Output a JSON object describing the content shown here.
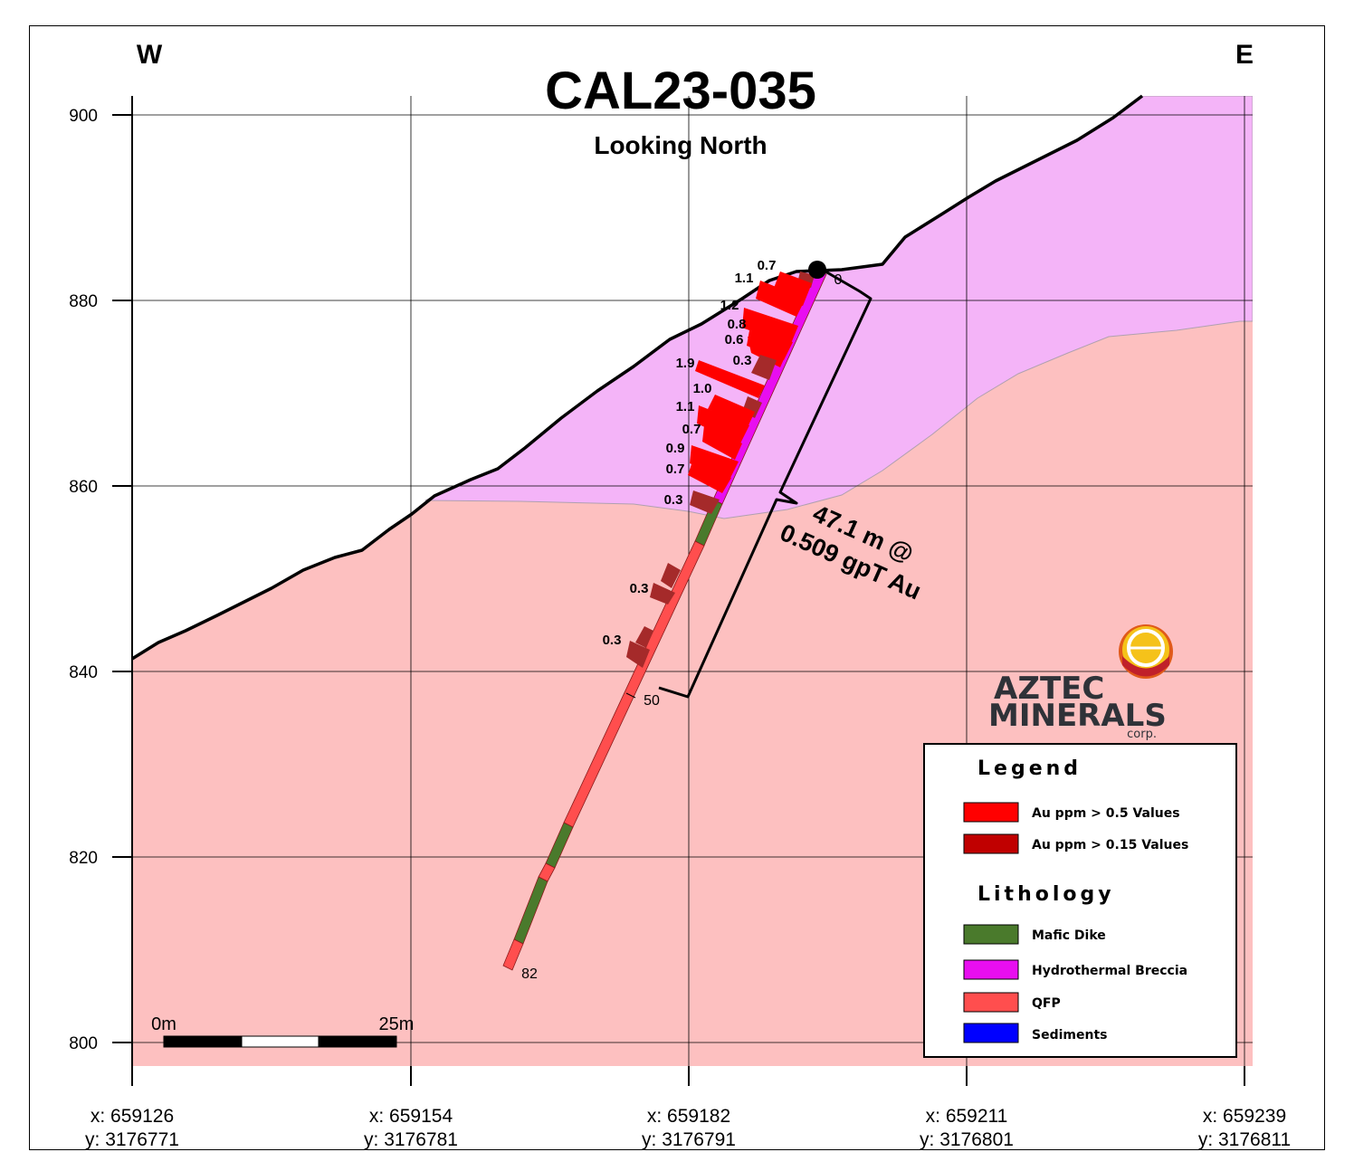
{
  "title": "CAL23-035",
  "subtitle": "Looking North",
  "direction_west": "W",
  "direction_east": "E",
  "elevation_ticks": [
    "900",
    "880",
    "860",
    "840",
    "820",
    "800"
  ],
  "coordinate_ticks": [
    {
      "x": "x: 659126",
      "y": "y: 3176771"
    },
    {
      "x": "x: 659154",
      "y": "y: 3176781"
    },
    {
      "x": "x: 659182",
      "y": "y: 3176791"
    },
    {
      "x": "x: 659211",
      "y": "y: 3176801"
    },
    {
      "x": "x: 659239",
      "y": "y: 3176811"
    }
  ],
  "assay_labels": [
    "0.7",
    "1.1",
    "1.2",
    "0.8",
    "0.6",
    "0.3",
    "1.9",
    "1.0",
    "1.1",
    "0.7",
    "0.9",
    "0.7",
    "0.3",
    "0.3",
    "0.3"
  ],
  "depth_labels": [
    "0",
    "50",
    "82"
  ],
  "interval": {
    "line1": "47.1 m @",
    "line2": "0.509 gpT Au"
  },
  "scale_bar": {
    "start": "0m",
    "end": "25m"
  },
  "logo": {
    "line1": "AZTEC",
    "line2": "MINERALS",
    "line3": "corp."
  },
  "legend": {
    "title": "Legend",
    "lithology_title": "Lithology",
    "assay_items": [
      {
        "label": "Au ppm > 0.5 Values",
        "color": "#ff0000"
      },
      {
        "label": "Au ppm > 0.15 Values",
        "color": "#c00000"
      }
    ],
    "lithology_items": [
      {
        "label": "Mafic Dike",
        "color": "#4a7a2c"
      },
      {
        "label": "Hydrothermal Breccia",
        "color": "#e80ef0"
      },
      {
        "label": "QFP",
        "color": "#ff4e4e"
      },
      {
        "label": "Sediments",
        "color": "#0000ff"
      }
    ]
  },
  "colors": {
    "qfp_fill": "#fdc0c0",
    "breccia_fill": "#f4b4f8",
    "assay_high": "#ff0000",
    "assay_low": "#a52a2a"
  }
}
